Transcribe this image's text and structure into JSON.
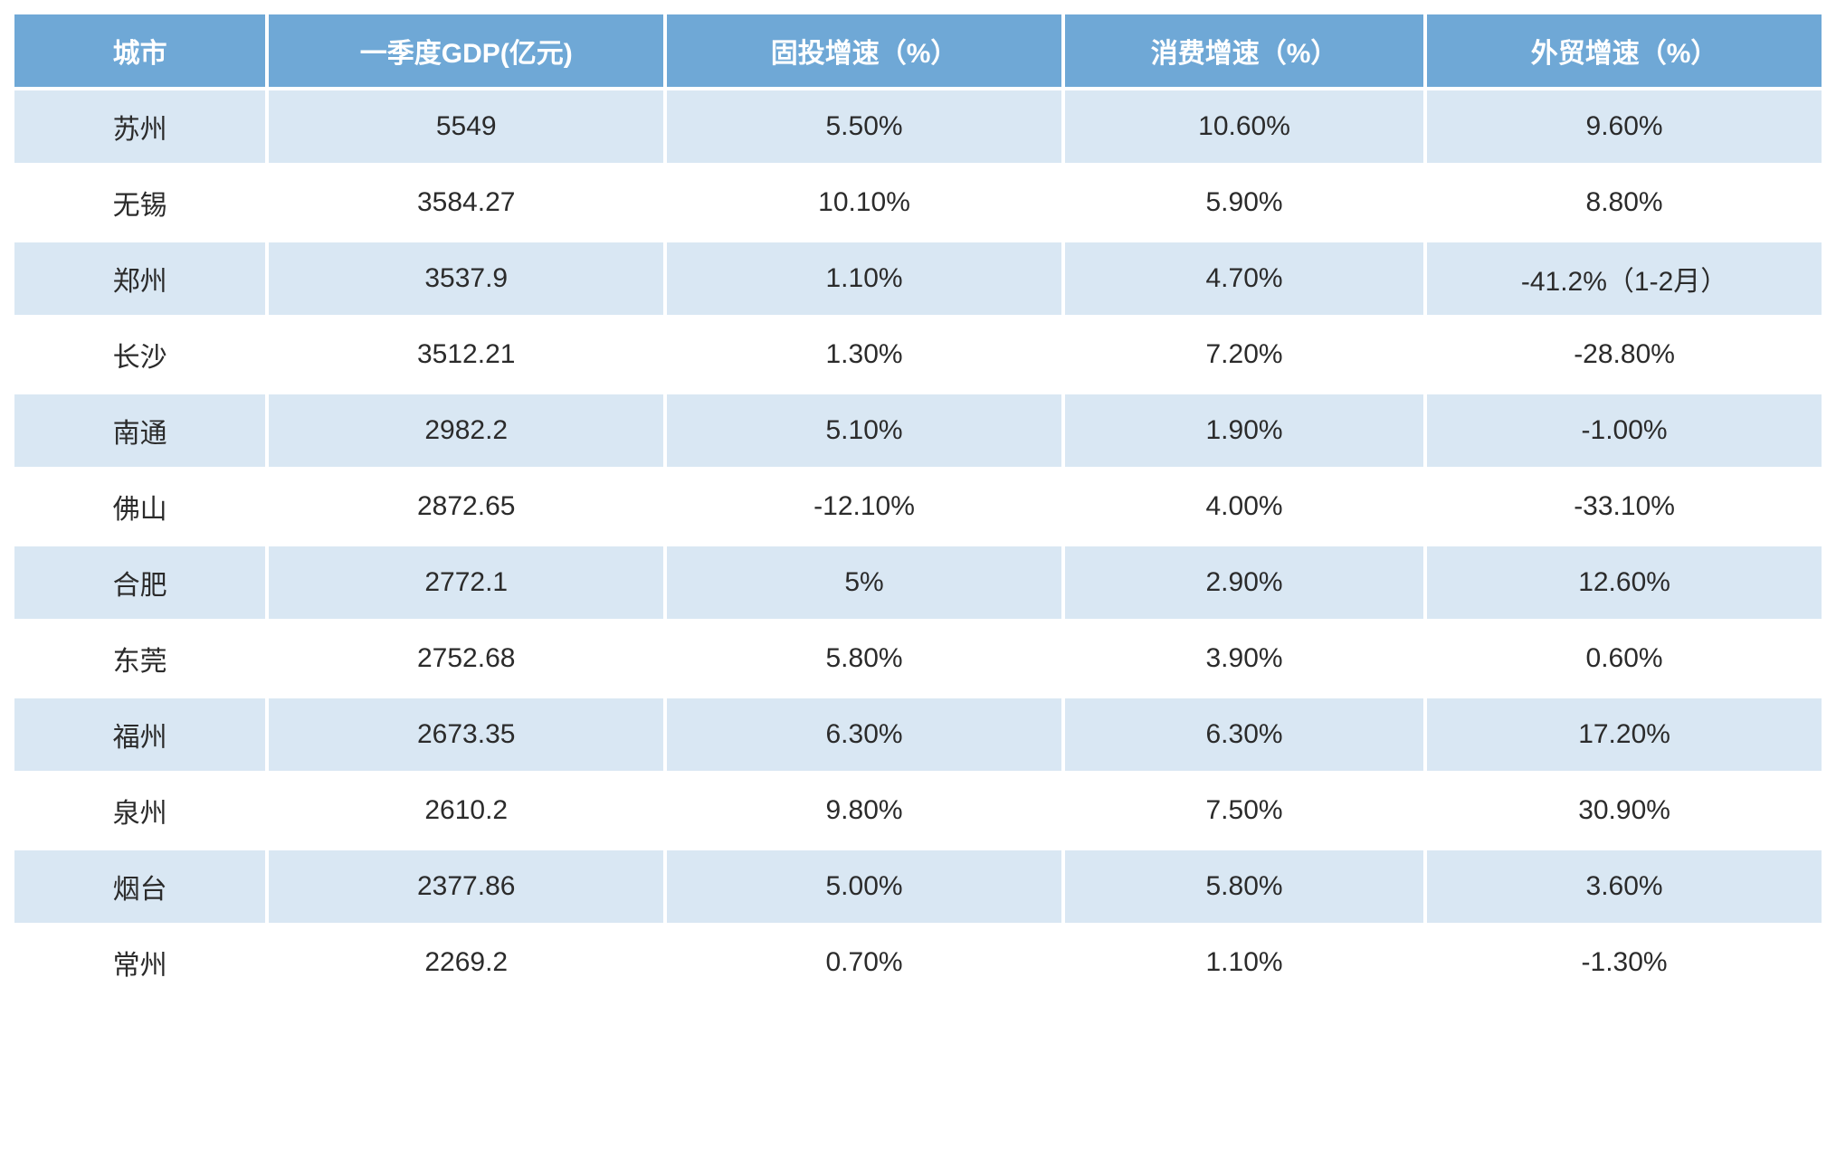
{
  "table": {
    "header_bg": "#6fa8d6",
    "header_fg": "#ffffff",
    "row_bg_even": "#d9e7f3",
    "row_bg_odd": "#ffffff",
    "cell_fg": "#2b2b2b",
    "header_fontsize": 30,
    "cell_fontsize": 30,
    "columns": [
      "城市",
      "一季度GDP(亿元)",
      "固投增速（%）",
      "消费增速（%）",
      "外贸增速（%）"
    ],
    "rows": [
      [
        "苏州",
        "5549",
        "5.50%",
        "10.60%",
        "9.60%"
      ],
      [
        "无锡",
        "3584.27",
        "10.10%",
        "5.90%",
        "8.80%"
      ],
      [
        "郑州",
        "3537.9",
        "1.10%",
        "4.70%",
        "-41.2%（1-2月）"
      ],
      [
        "长沙",
        "3512.21",
        "1.30%",
        "7.20%",
        "-28.80%"
      ],
      [
        "南通",
        "2982.2",
        "5.10%",
        "1.90%",
        "-1.00%"
      ],
      [
        "佛山",
        "2872.65",
        "-12.10%",
        "4.00%",
        "-33.10%"
      ],
      [
        "合肥",
        "2772.1",
        "5%",
        "2.90%",
        "12.60%"
      ],
      [
        "东莞",
        "2752.68",
        "5.80%",
        "3.90%",
        "0.60%"
      ],
      [
        "福州",
        "2673.35",
        "6.30%",
        "6.30%",
        "17.20%"
      ],
      [
        "泉州",
        "2610.2",
        "9.80%",
        "7.50%",
        "30.90%"
      ],
      [
        "烟台",
        "2377.86",
        "5.00%",
        "5.80%",
        "3.60%"
      ],
      [
        "常州",
        "2269.2",
        "0.70%",
        "1.10%",
        "-1.30%"
      ]
    ]
  }
}
